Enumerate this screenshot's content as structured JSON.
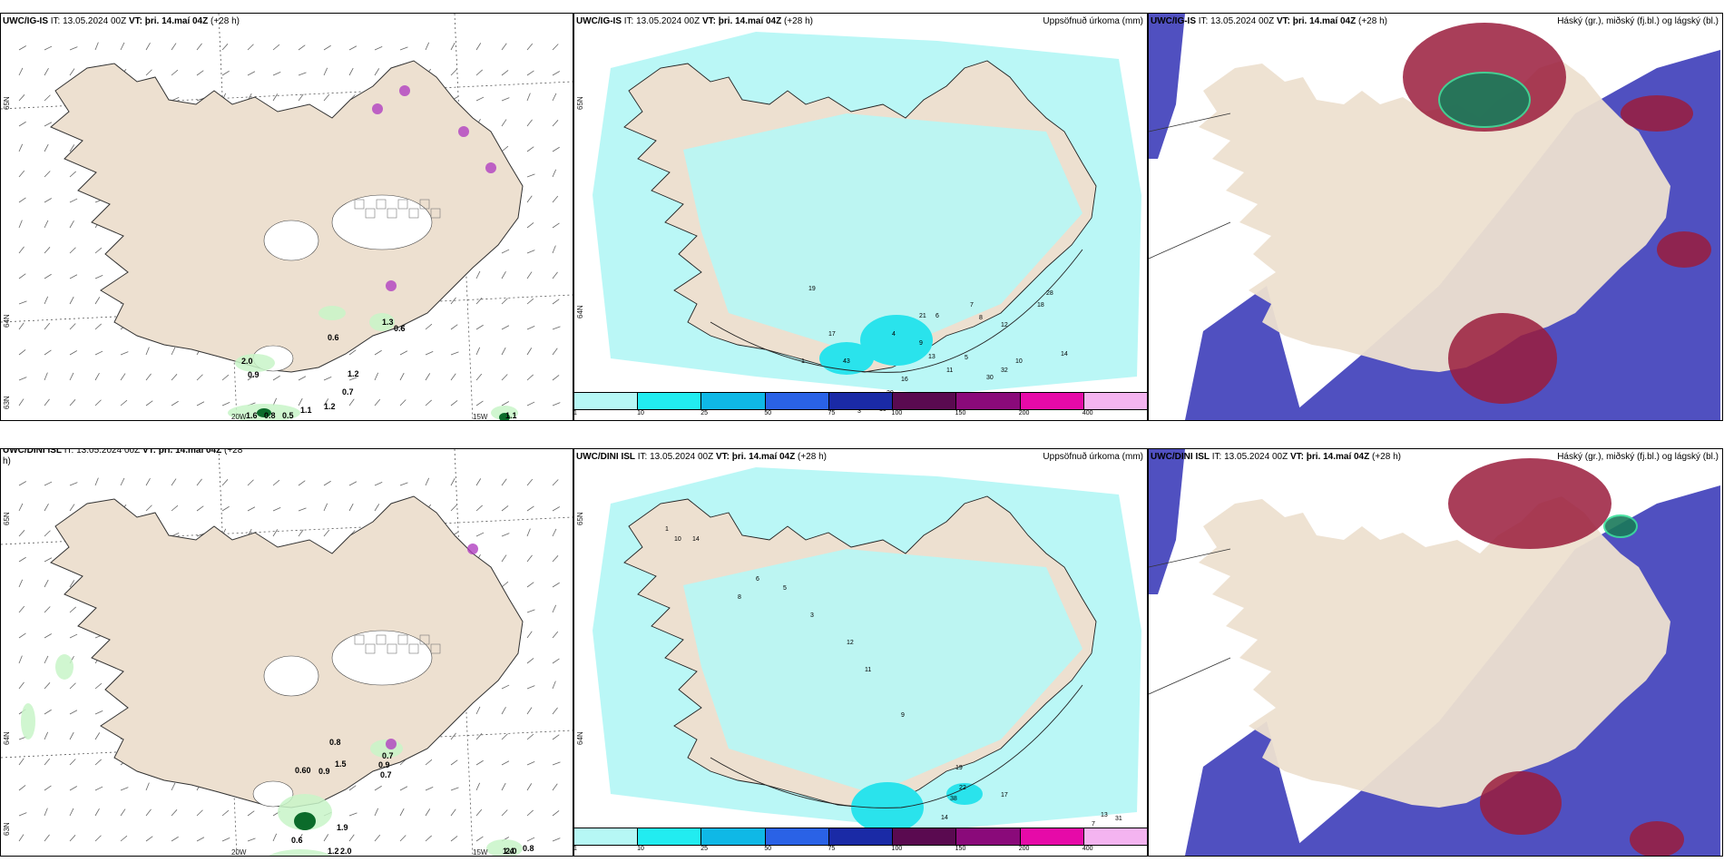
{
  "colors": {
    "land": "#ede0d0",
    "sea": "#ffffff",
    "precip_light": "#b6f7f5",
    "precip_mid": "#2ae3ec",
    "precip_strong": "#18c2df",
    "cloud_low": "#5050c0",
    "cloud_high": "#9a1c3c",
    "cloud_mid_green": "#1a7a5a",
    "green_light": "#c8f5c8",
    "green_dark": "#0b6b2a",
    "purple": "#b040c0"
  },
  "rows": [
    {
      "panels": [
        {
          "model": "UWC/IG-IS",
          "it_label": "IT:",
          "it_value": "13.05.2024 00Z",
          "vt_label": "VT:",
          "vt_value": "þri. 14.maí 04Z",
          "lead": "(+28 h)",
          "right_title": "",
          "lat_labels": [
            "65N",
            "64N",
            "63N"
          ],
          "lon_labels": [
            "20W",
            "15W"
          ],
          "values": [
            "2.0",
            "0.9",
            "0.6",
            "1.2",
            "0.7",
            "1.1",
            "1.2",
            "1.6",
            "0.8",
            "0.5",
            "1.3",
            "0.6",
            "1.1"
          ]
        },
        {
          "model": "UWC/IG-IS",
          "it_label": "IT:",
          "it_value": "13.05.2024 00Z",
          "vt_label": "VT:",
          "vt_value": "þri. 14.maí 04Z",
          "lead": "(+28 h)",
          "right_title": "Uppsöfnuð úrkoma (mm)",
          "lat_labels": [
            "65N",
            "64N"
          ],
          "values": [
            "1",
            "3",
            "10",
            "13",
            "11",
            "5",
            "4",
            "6",
            "7",
            "8",
            "12",
            "9",
            "14",
            "28",
            "32",
            "30",
            "43",
            "17",
            "19",
            "20",
            "16",
            "21",
            "10",
            "18"
          ]
        },
        {
          "model": "UWC/IG-IS",
          "it_label": "IT:",
          "it_value": "13.05.2024 00Z",
          "vt_label": "VT:",
          "vt_value": "þri. 14.maí 04Z",
          "lead": "(+28 h)",
          "right_title": "Háský (gr.), miðský (fj.bl.) og lágský (bl.)"
        }
      ]
    },
    {
      "panels": [
        {
          "model": "UWC/DINI ISL",
          "it_label": "IT:",
          "it_value": "13.05.2024 00Z",
          "vt_label": "VT:",
          "vt_value": "þri. 14.maí 04Z",
          "lead": "(+28",
          "lead_cont": "h)",
          "right_title": "",
          "lat_labels": [
            "65N",
            "64N",
            "63N"
          ],
          "lon_labels": [
            "20W",
            "15W"
          ],
          "values": [
            "0.8",
            "1.5",
            "0.60",
            "0.9",
            "0.7",
            "0.9",
            "0.7",
            "1.9",
            "2.0",
            "0.6",
            "1.2",
            "1.4",
            "0.8",
            "2.0"
          ]
        },
        {
          "model": "UWC/DINI ISL",
          "it_label": "IT:",
          "it_value": "13.05.2024 00Z",
          "vt_label": "VT:",
          "vt_value": "þri. 14.maí 04Z",
          "lead": "(+28 h)",
          "right_title": "Uppsöfnuð úrkoma (mm)",
          "lat_labels": [
            "65N",
            "64N"
          ],
          "values": [
            "1",
            "10",
            "14",
            "12",
            "3",
            "5",
            "6",
            "8",
            "11",
            "9",
            "19",
            "22",
            "38",
            "17",
            "14",
            "31",
            "15",
            "7",
            "13"
          ]
        },
        {
          "model": "UWC/DINI ISL",
          "it_label": "IT:",
          "it_value": "13.05.2024 00Z",
          "vt_label": "VT:",
          "vt_value": "þri. 14.maí 04Z",
          "lead": "(+28 h)",
          "right_title": "Háský (gr.), miðský (fj.bl.) og lágský (bl.)"
        }
      ]
    }
  ],
  "colorbar": {
    "labels": [
      "1",
      "10",
      "25",
      "50",
      "75",
      "100",
      "150",
      "200",
      "400"
    ],
    "colors": [
      "#b6f7f5",
      "#22ecf0",
      "#0fb8e6",
      "#2a62e6",
      "#1a2aa6",
      "#5a0a50",
      "#8a0a7a",
      "#e60aa8",
      "#f4b4f0"
    ]
  }
}
